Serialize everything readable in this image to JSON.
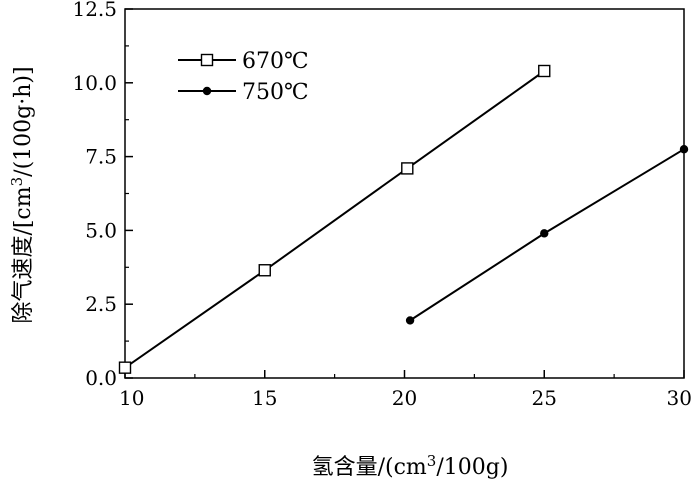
{
  "chart_data": {
    "type": "line",
    "title": "",
    "xlabel": "氢含量/(cm3/100g)",
    "xlabel_parts": {
      "base": "氢含量/(cm",
      "sup": "3",
      "rest": "/100g)"
    },
    "ylabel": "除气速度/[cm3/(100g·h)]",
    "ylabel_parts": {
      "base": "除气速度/[cm",
      "sup": "3",
      "rest": "/(100g·h)]"
    },
    "xlim": [
      10,
      30
    ],
    "ylim": [
      0,
      12.5
    ],
    "x_ticks": [
      10,
      15,
      20,
      25,
      30
    ],
    "y_ticks": [
      "0.0",
      "2.5",
      "5.0",
      "7.5",
      "10.0",
      "12.5"
    ],
    "grid": false,
    "legend_position": "top-left",
    "series": [
      {
        "name": "670℃",
        "marker": "open-square",
        "color": "#000000",
        "x": [
          10,
          15,
          20.1,
          25
        ],
        "y": [
          0.35,
          3.65,
          7.1,
          10.4
        ]
      },
      {
        "name": "750℃",
        "marker": "filled-circle",
        "color": "#000000",
        "x": [
          20.2,
          25,
          30
        ],
        "y": [
          1.95,
          4.9,
          7.75
        ]
      }
    ]
  }
}
